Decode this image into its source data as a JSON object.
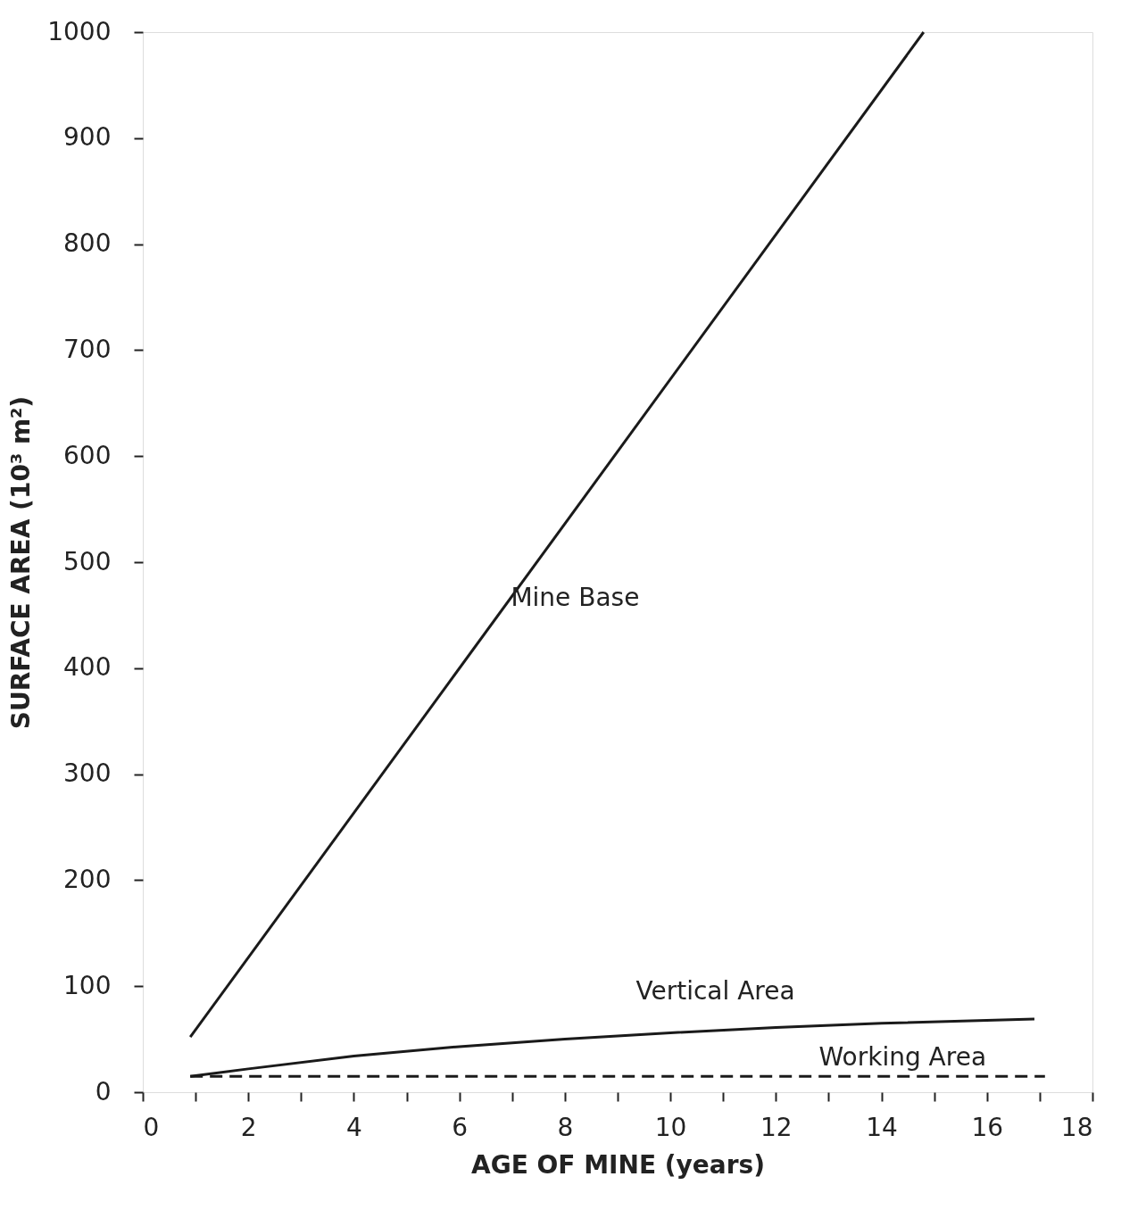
{
  "chart_data": {
    "type": "line",
    "xlabel": "AGE OF MINE (years)",
    "ylabel": "SURFACE AREA (10³ m²)",
    "xlim": [
      0,
      18
    ],
    "ylim": [
      0,
      1000
    ],
    "xticks": [
      0,
      {
        "value": 1,
        "label": null
      },
      2,
      {
        "value": 3,
        "label": null
      },
      4,
      {
        "value": 5,
        "label": null
      },
      6,
      {
        "value": 7,
        "label": null
      },
      8,
      {
        "value": 9,
        "label": null
      },
      10,
      {
        "value": 11,
        "label": null
      },
      12,
      {
        "value": 13,
        "label": null
      },
      14,
      {
        "value": 15,
        "label": null
      },
      16,
      {
        "value": 17,
        "label": null
      },
      18
    ],
    "yticks": [
      0,
      100,
      200,
      300,
      400,
      500,
      600,
      700,
      800,
      900,
      1000
    ],
    "grid": false,
    "marker": "none",
    "series": [
      {
        "color": "#1a1a1a",
        "line_style": "solid",
        "x": [
          0.9,
          14.8
        ],
        "values": [
          52,
          1000
        ]
      },
      {
        "color": "#1a1a1a",
        "line_style": "solid",
        "x": [
          0.9,
          2,
          4,
          6,
          8,
          10,
          12,
          14,
          16.9
        ],
        "values": [
          15,
          22,
          34,
          43,
          50,
          56,
          61,
          65,
          69
        ]
      },
      {
        "color": "#1a1a1a",
        "line_style": "dashed",
        "x": [
          0.9,
          17.1
        ],
        "values": [
          15,
          15
        ]
      }
    ],
    "annotations": [
      {
        "text": "Mine Base",
        "x": 6.3,
        "y": 415
      },
      {
        "text": "Vertical Area",
        "x": 8.5,
        "y": 52
      },
      {
        "text": "Working Area",
        "x": 11.8,
        "y": 15
      }
    ]
  }
}
